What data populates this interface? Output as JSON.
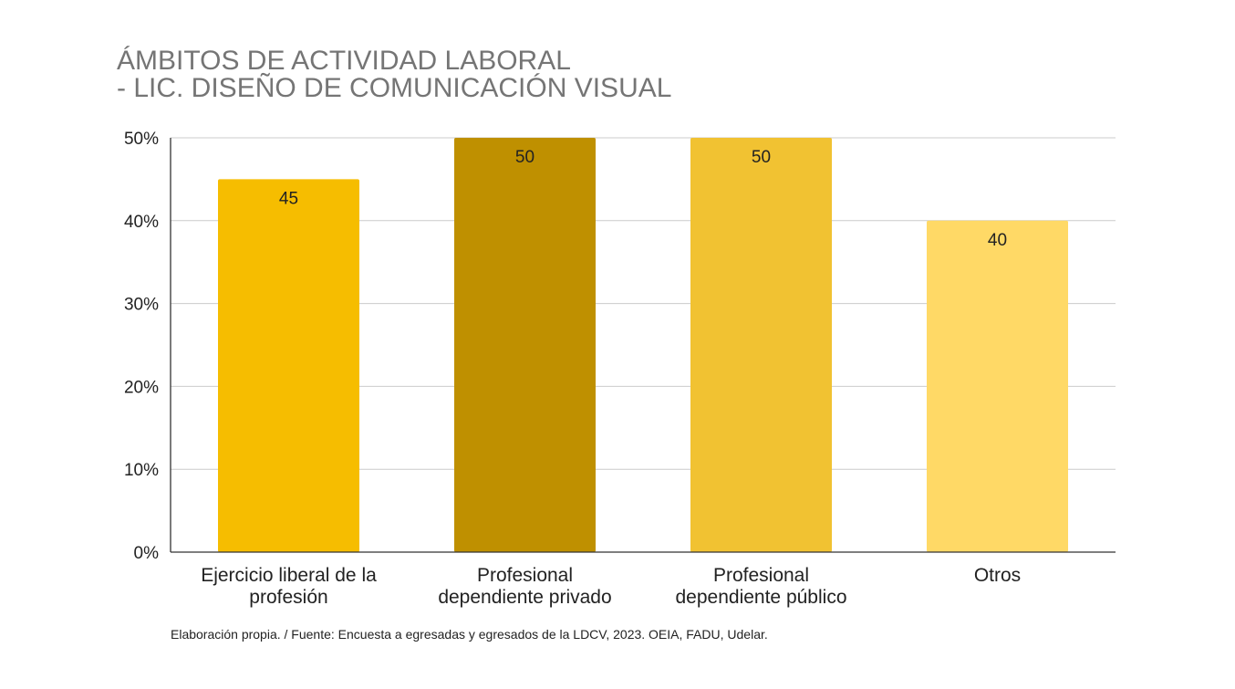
{
  "chart_data": {
    "type": "bar",
    "title_lines": [
      "ÁMBITOS DE ACTIVIDAD LABORAL",
      "- LIC. DISEÑO DE COMUNICACIÓN VISUAL"
    ],
    "categories": [
      [
        "Ejercicio liberal de la",
        "profesión"
      ],
      [
        "Profesional",
        "dependiente privado"
      ],
      [
        "Profesional",
        "dependiente público"
      ],
      [
        "Otros"
      ]
    ],
    "values": [
      45,
      50,
      50,
      40
    ],
    "data_labels": [
      "45",
      "50",
      "50",
      "40"
    ],
    "bar_colors": [
      "#F6BD00",
      "#BF9000",
      "#F1C232",
      "#FFD966"
    ],
    "ylim": [
      0,
      50
    ],
    "y_ticks": [
      0,
      10,
      20,
      30,
      40,
      50
    ],
    "y_tick_labels": [
      "0%",
      "10%",
      "20%",
      "30%",
      "40%",
      "50%"
    ],
    "grid": true,
    "legend": "none",
    "xlabel": "",
    "ylabel": ""
  },
  "footnote": "Elaboración propia. / Fuente: Encuesta a egresadas y egresados de la LDCV, 2023. OEIA, FADU, Udelar."
}
